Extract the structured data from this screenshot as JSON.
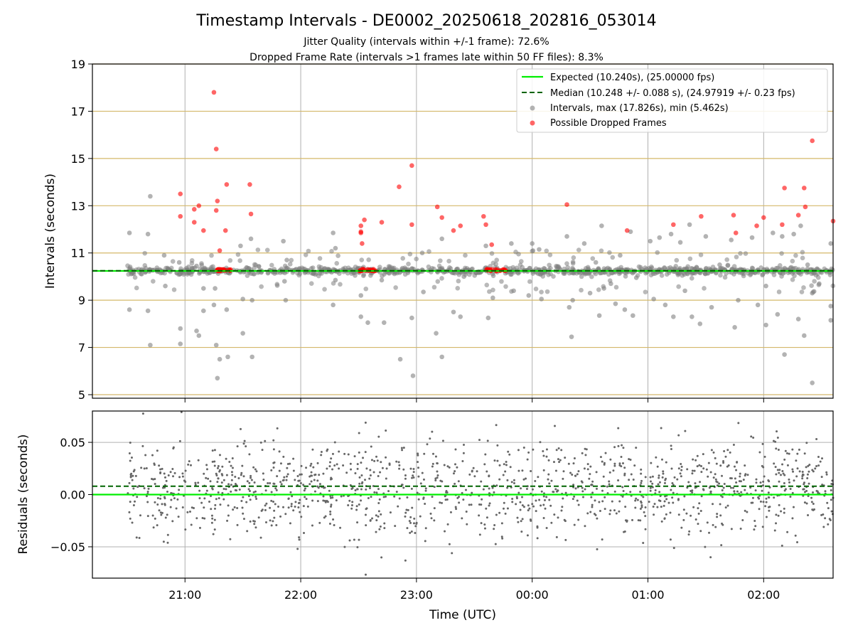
{
  "figure": {
    "title": "Timestamp Intervals - DE0002_20250618_202816_053014",
    "subtitle_1": "Jitter Quality (intervals within +/-1 frame): 72.6%",
    "subtitle_2": "Dropped Frame Rate (intervals >1 frames late within 50 FF files): 8.3%"
  },
  "chart_data": [
    {
      "type": "scatter",
      "xlabel": "",
      "ylabel": "Intervals (seconds)",
      "x_unit": "hours since 20:00 UTC",
      "xlim": [
        20.2,
        26.6
      ],
      "ylim": [
        4.85,
        19
      ],
      "yticks": [
        5,
        7,
        9,
        11,
        13,
        15,
        17,
        19
      ],
      "ytick_labels": [
        "5",
        "7",
        "9",
        "11",
        "13",
        "15",
        "17",
        "19"
      ],
      "xticks": [
        21,
        22,
        23,
        24,
        25,
        26
      ],
      "grid": true,
      "legend_position": "top-right",
      "gold_lines": [
        5,
        7,
        9,
        11,
        13,
        15,
        17,
        19
      ],
      "expected_line": {
        "label": "Expected (10.240s), (25.00000 fps)",
        "value": 10.24,
        "color": "#00ee00"
      },
      "median_line": {
        "label": "Median (10.248 +/- 0.088 s), (24.97919 +/- 0.23 fps)",
        "value": 10.248,
        "color": "#006400"
      },
      "series": [
        {
          "name": "Intervals, max (17.826s), min (5.462s)",
          "color": "#808080",
          "points": [
            [
              20.52,
              11.85
            ],
            [
              20.52,
              8.6
            ],
            [
              20.68,
              11.8
            ],
            [
              20.68,
              8.55
            ],
            [
              20.7,
              13.4
            ],
            [
              20.7,
              7.1
            ],
            [
              20.82,
              10.9
            ],
            [
              20.83,
              9.6
            ],
            [
              20.95,
              10.6
            ],
            [
              20.96,
              7.8
            ],
            [
              20.96,
              7.15
            ],
            [
              21.1,
              10.45
            ],
            [
              21.1,
              7.7
            ],
            [
              21.12,
              7.5
            ],
            [
              21.16,
              9.5
            ],
            [
              21.16,
              8.55
            ],
            [
              21.25,
              8.8
            ],
            [
              21.26,
              9.5
            ],
            [
              21.27,
              7.1
            ],
            [
              21.28,
              5.7
            ],
            [
              21.3,
              6.5
            ],
            [
              21.36,
              8.6
            ],
            [
              21.37,
              6.6
            ],
            [
              21.48,
              11.3
            ],
            [
              21.5,
              9.05
            ],
            [
              21.5,
              7.6
            ],
            [
              21.57,
              11.6
            ],
            [
              21.58,
              9.0
            ],
            [
              21.58,
              6.6
            ],
            [
              21.85,
              11.5
            ],
            [
              21.86,
              9.8
            ],
            [
              21.87,
              9.0
            ],
            [
              21.88,
              10.7
            ],
            [
              22.28,
              11.85
            ],
            [
              22.28,
              8.8
            ],
            [
              22.3,
              11.2
            ],
            [
              22.3,
              9.85
            ],
            [
              22.52,
              9.2
            ],
            [
              22.52,
              8.3
            ],
            [
              22.58,
              8.05
            ],
            [
              22.7,
              9.85
            ],
            [
              22.72,
              8.05
            ],
            [
              22.86,
              6.5
            ],
            [
              22.96,
              8.25
            ],
            [
              22.97,
              5.8
            ],
            [
              23.05,
              11.0
            ],
            [
              23.06,
              9.35
            ],
            [
              23.17,
              7.6
            ],
            [
              23.22,
              11.6
            ],
            [
              23.22,
              6.6
            ],
            [
              23.32,
              8.5
            ],
            [
              23.38,
              8.3
            ],
            [
              23.41,
              10.0
            ],
            [
              23.6,
              11.3
            ],
            [
              23.62,
              8.25
            ],
            [
              23.66,
              9.1
            ],
            [
              23.82,
              11.4
            ],
            [
              23.84,
              9.4
            ],
            [
              23.97,
              9.2
            ],
            [
              24.0,
              11.4
            ],
            [
              24.06,
              11.15
            ],
            [
              24.08,
              9.05
            ],
            [
              24.3,
              11.7
            ],
            [
              24.32,
              8.7
            ],
            [
              24.34,
              7.45
            ],
            [
              24.35,
              9.0
            ],
            [
              24.45,
              11.4
            ],
            [
              24.5,
              9.3
            ],
            [
              24.55,
              10.6
            ],
            [
              24.58,
              8.35
            ],
            [
              24.6,
              12.15
            ],
            [
              24.62,
              9.5
            ],
            [
              24.68,
              9.7
            ],
            [
              24.72,
              8.85
            ],
            [
              24.76,
              10.9
            ],
            [
              24.8,
              8.6
            ],
            [
              24.85,
              11.9
            ],
            [
              24.87,
              8.35
            ],
            [
              24.9,
              9.95
            ],
            [
              25.02,
              11.5
            ],
            [
              25.05,
              9.05
            ],
            [
              25.1,
              11.65
            ],
            [
              25.15,
              8.8
            ],
            [
              25.2,
              11.8
            ],
            [
              25.22,
              8.3
            ],
            [
              25.28,
              11.45
            ],
            [
              25.32,
              9.4
            ],
            [
              25.36,
              12.2
            ],
            [
              25.38,
              8.3
            ],
            [
              25.42,
              10.4
            ],
            [
              25.45,
              8.0
            ],
            [
              25.5,
              11.7
            ],
            [
              25.55,
              8.7
            ],
            [
              25.62,
              10.5
            ],
            [
              25.72,
              11.55
            ],
            [
              25.75,
              7.85
            ],
            [
              25.78,
              9.0
            ],
            [
              25.82,
              10.2
            ],
            [
              25.9,
              11.65
            ],
            [
              25.95,
              8.8
            ],
            [
              26.02,
              9.6
            ],
            [
              26.02,
              7.95
            ],
            [
              26.08,
              11.85
            ],
            [
              26.12,
              8.4
            ],
            [
              26.16,
              11.7
            ],
            [
              26.18,
              6.7
            ],
            [
              26.26,
              11.8
            ],
            [
              26.3,
              8.2
            ],
            [
              26.32,
              12.15
            ],
            [
              26.35,
              7.5
            ],
            [
              26.38,
              10.5
            ],
            [
              26.42,
              9.3
            ],
            [
              26.42,
              5.5
            ],
            [
              26.48,
              9.7
            ],
            [
              26.58,
              11.4
            ],
            [
              26.58,
              8.75
            ],
            [
              26.58,
              8.15
            ]
          ]
        },
        {
          "name": "Possible Dropped Frames",
          "color": "#ff0000",
          "points": [
            [
              20.96,
              13.5
            ],
            [
              20.96,
              12.55
            ],
            [
              21.08,
              12.85
            ],
            [
              21.08,
              12.3
            ],
            [
              21.12,
              13.0
            ],
            [
              21.16,
              11.95
            ],
            [
              21.25,
              17.8
            ],
            [
              21.27,
              15.4
            ],
            [
              21.27,
              12.8
            ],
            [
              21.28,
              13.2
            ],
            [
              21.3,
              11.1
            ],
            [
              21.35,
              11.95
            ],
            [
              21.36,
              13.9
            ],
            [
              21.56,
              13.9
            ],
            [
              21.57,
              12.65
            ],
            [
              22.52,
              12.15
            ],
            [
              22.52,
              11.9
            ],
            [
              22.52,
              11.85
            ],
            [
              22.53,
              11.4
            ],
            [
              22.55,
              12.4
            ],
            [
              22.7,
              12.3
            ],
            [
              22.85,
              13.8
            ],
            [
              22.96,
              14.7
            ],
            [
              22.96,
              12.2
            ],
            [
              23.18,
              12.95
            ],
            [
              23.22,
              12.5
            ],
            [
              23.32,
              11.95
            ],
            [
              23.38,
              12.15
            ],
            [
              23.58,
              12.55
            ],
            [
              23.6,
              12.2
            ],
            [
              23.65,
              11.35
            ],
            [
              24.3,
              13.05
            ],
            [
              24.82,
              11.95
            ],
            [
              25.22,
              12.2
            ],
            [
              25.46,
              12.55
            ],
            [
              25.74,
              12.6
            ],
            [
              25.76,
              11.85
            ],
            [
              25.94,
              12.15
            ],
            [
              26.0,
              12.5
            ],
            [
              26.16,
              12.2
            ],
            [
              26.18,
              13.75
            ],
            [
              26.3,
              12.6
            ],
            [
              26.35,
              13.75
            ],
            [
              26.36,
              12.95
            ],
            [
              26.42,
              15.75
            ],
            [
              26.6,
              12.35
            ]
          ],
          "clusters": [
            [
              21.28,
              21.4
            ],
            [
              22.5,
              22.65
            ],
            [
              23.58,
              23.78
            ]
          ],
          "cluster_value": 10.27
        }
      ],
      "dense_band": {
        "x": [
          20.5,
          26.6
        ],
        "center": 10.24,
        "spread": 0.08
      }
    },
    {
      "type": "scatter",
      "xlabel": "Time (UTC)",
      "ylabel": "Residuals (seconds)",
      "xlim": [
        20.2,
        26.6
      ],
      "ylim": [
        -0.08,
        0.08
      ],
      "yticks": [
        -0.05,
        0.0,
        0.05
      ],
      "ytick_labels": [
        "−0.05",
        "0.00",
        "0.05"
      ],
      "xticks": [
        21,
        22,
        23,
        24,
        25,
        26
      ],
      "xtick_labels": [
        "21:00",
        "22:00",
        "23:00",
        "00:00",
        "01:00",
        "02:00"
      ],
      "grid": true,
      "expected_line": {
        "value": 0.0,
        "color": "#00ee00"
      },
      "median_line": {
        "value": 0.008,
        "color": "#006400"
      },
      "residual_points": {
        "x_range": [
          20.5,
          26.6
        ],
        "count": 1400,
        "std": 0.022,
        "color": "#666666"
      }
    }
  ]
}
